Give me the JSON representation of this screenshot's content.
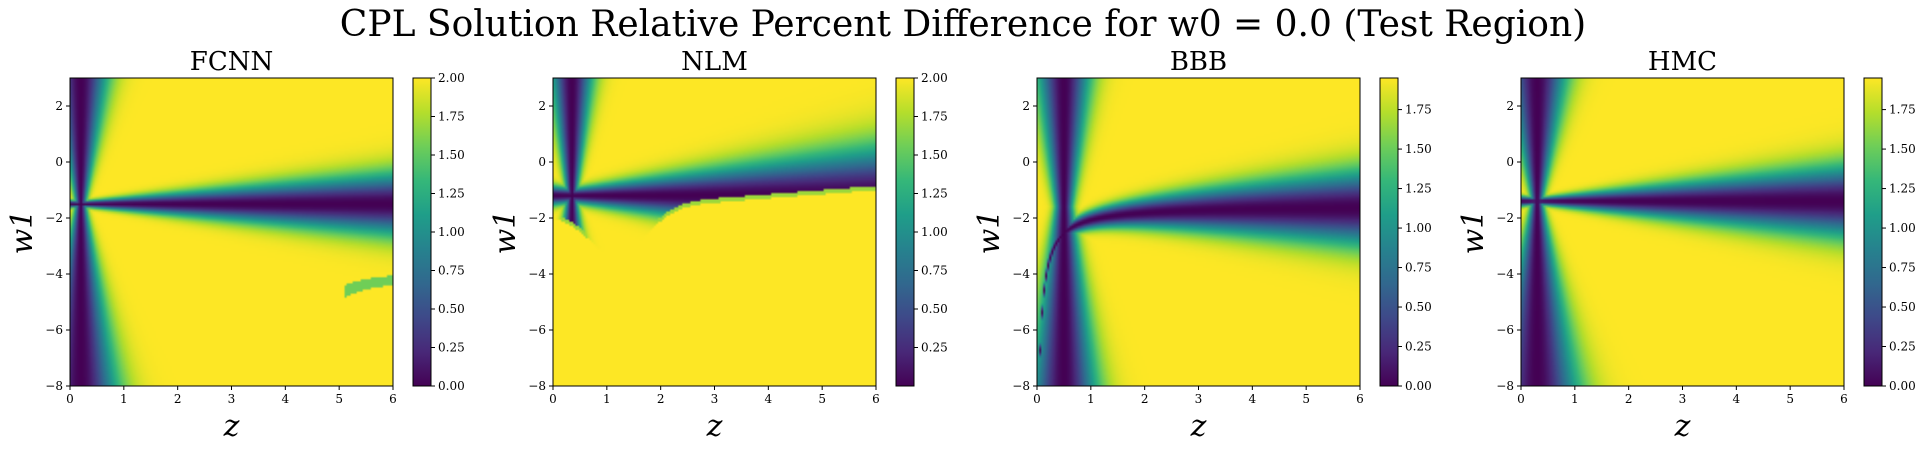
{
  "figure": {
    "title": "CPL Solution Relative Percent Difference for w0 = 0.0 (Test Region)"
  },
  "colors": {
    "viridis": [
      "#440154",
      "#482878",
      "#3e4989",
      "#31688e",
      "#26828e",
      "#1f9e89",
      "#35b779",
      "#6ece58",
      "#b5de2b",
      "#fde725"
    ]
  },
  "chart_data": [
    {
      "type": "heatmap",
      "title": "FCNN",
      "xlabel": "z",
      "ylabel": "w1",
      "xlim": [
        0,
        6
      ],
      "ylim": [
        -8,
        3
      ],
      "x_ticks": [
        "0",
        "1",
        "2",
        "3",
        "4",
        "5",
        "6"
      ],
      "y_ticks": [
        "2",
        "0",
        "−2",
        "−4",
        "−6",
        "−8"
      ],
      "colorbar": {
        "range": [
          0.0,
          2.0
        ],
        "ticks": [
          "2.00",
          "1.75",
          "1.50",
          "1.25",
          "1.00",
          "0.75",
          "0.50",
          "0.25",
          "0.00"
        ]
      },
      "features": {
        "valley_w1": -1.5,
        "asymptote_z": 0.2,
        "artifact": "bright streak near z=5.2–6, w1≈-4.3"
      }
    },
    {
      "type": "heatmap",
      "title": "NLM",
      "xlabel": "z",
      "ylabel": "w1",
      "xlim": [
        0,
        6
      ],
      "ylim": [
        -8,
        3
      ],
      "x_ticks": [
        "0",
        "1",
        "2",
        "3",
        "4",
        "5",
        "6"
      ],
      "y_ticks": [
        "2",
        "0",
        "−2",
        "−4",
        "−6",
        "−8"
      ],
      "colorbar": {
        "range": [
          0.0,
          2.0
        ],
        "ticks": [
          "2.00",
          "1.75",
          "1.50",
          "1.25",
          "1.00",
          "0.75",
          "0.50",
          "0.25"
        ]
      },
      "features": {
        "dark_wedge_apex_z": 1.2,
        "dark_wedge_apex_w1": -3.6,
        "boundary_at_z6_w1": -0.9
      }
    },
    {
      "type": "heatmap",
      "title": "BBB",
      "xlabel": "z",
      "ylabel": "w1",
      "xlim": [
        0,
        6
      ],
      "ylim": [
        -8,
        3
      ],
      "x_ticks": [
        "0",
        "1",
        "2",
        "3",
        "4",
        "5",
        "6"
      ],
      "y_ticks": [
        "2",
        "0",
        "−2",
        "−4",
        "−6",
        "−8"
      ],
      "colorbar": {
        "range": [
          0.0,
          1.95
        ],
        "ticks": [
          "1.75",
          "1.50",
          "1.25",
          "1.00",
          "0.75",
          "0.50",
          "0.25",
          "0.00"
        ]
      },
      "features": {
        "valley_w1": -1.6,
        "asymptote_z": 0.5
      }
    },
    {
      "type": "heatmap",
      "title": "HMC",
      "xlabel": "z",
      "ylabel": "w1",
      "xlim": [
        0,
        6
      ],
      "ylim": [
        -8,
        3
      ],
      "x_ticks": [
        "0",
        "1",
        "2",
        "3",
        "4",
        "5",
        "6"
      ],
      "y_ticks": [
        "2",
        "0",
        "−2",
        "−4",
        "−6",
        "−8"
      ],
      "colorbar": {
        "range": [
          0.0,
          1.95
        ],
        "ticks": [
          "1.75",
          "1.50",
          "1.25",
          "1.00",
          "0.75",
          "0.50",
          "0.25",
          "0.00"
        ]
      },
      "features": {
        "valley_w1": -1.4,
        "asymptote_z": 0.3
      }
    }
  ]
}
